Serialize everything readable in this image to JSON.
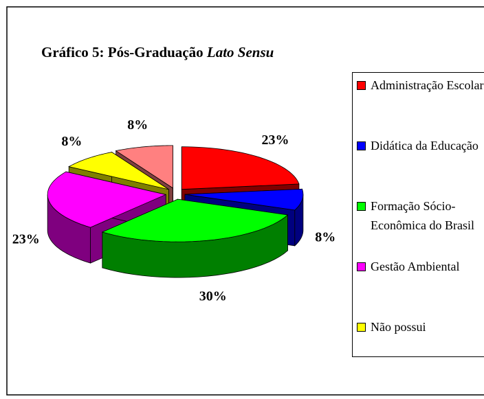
{
  "chart_data": {
    "type": "pie3d",
    "title": "Gráfico 5: Pós-Graduação",
    "title_italic": "Lato Sensu",
    "categories": [
      "Administração Escolar",
      "Didática da Educação",
      "Formação Sócio-Econômica do Brasil",
      "Gestão Ambiental",
      "Não possui",
      null
    ],
    "values": [
      23,
      8,
      30,
      23,
      8,
      8
    ],
    "value_labels": [
      "23%",
      "8%",
      "30%",
      "23%",
      "8%",
      "8%"
    ],
    "colors": [
      "#ff0000",
      "#0000ff",
      "#00ff00",
      "#ff00ff",
      "#ffff00",
      "#ff8080"
    ],
    "legend": "right"
  }
}
